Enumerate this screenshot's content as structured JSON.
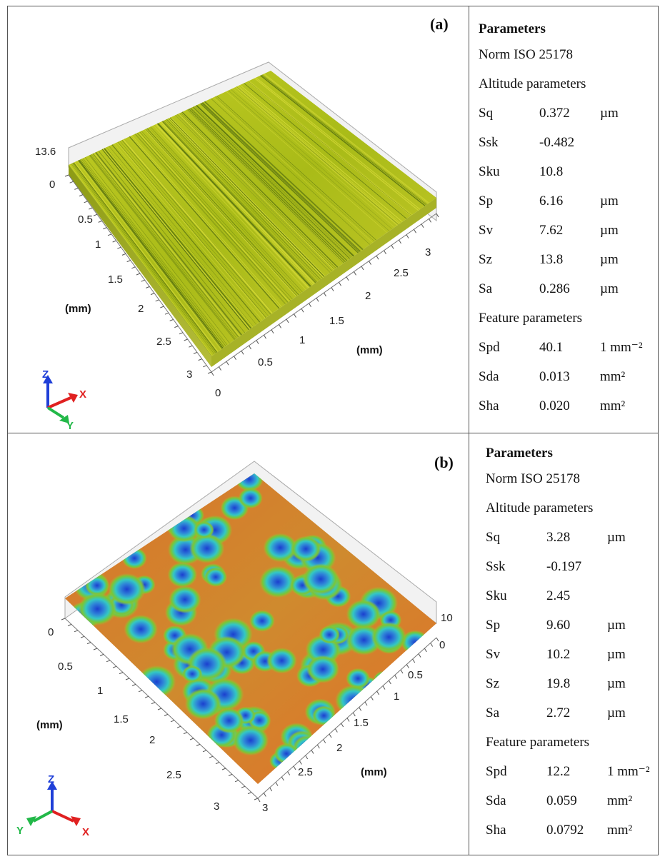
{
  "panels": {
    "a": {
      "label": "(a)",
      "plot": {
        "z_ticks": [
          "13.6",
          "0"
        ],
        "y_ticks": [
          "0.5",
          "1",
          "1.5",
          "2",
          "2.5",
          "3"
        ],
        "x_ticks": [
          "0",
          "0.5",
          "1",
          "1.5",
          "2",
          "2.5",
          "3"
        ],
        "y_unit": "(mm)",
        "x_unit": "(mm)",
        "triad": {
          "z": "Z",
          "x": "X",
          "y": "Y"
        }
      },
      "parameters": {
        "title": "Parameters",
        "norm": "Norm ISO 25178",
        "altitude_heading": "Altitude parameters",
        "altitude": [
          {
            "name": "Sq",
            "value": "0.372",
            "unit": "µm"
          },
          {
            "name": "Ssk",
            "value": "-0.482",
            "unit": ""
          },
          {
            "name": "Sku",
            "value": "10.8",
            "unit": ""
          },
          {
            "name": "Sp",
            "value": "6.16",
            "unit": "µm"
          },
          {
            "name": "Sv",
            "value": "7.62",
            "unit": "µm"
          },
          {
            "name": "Sz",
            "value": "13.8",
            "unit": "µm"
          },
          {
            "name": "Sa",
            "value": "0.286",
            "unit": "µm"
          }
        ],
        "feature_heading": "Feature parameters",
        "feature": [
          {
            "name": "Spd",
            "value": "40.1",
            "unit": "1 mm⁻²"
          },
          {
            "name": "Sda",
            "value": "0.013",
            "unit": "mm²"
          },
          {
            "name": "Sha",
            "value": "0.020",
            "unit": "mm²"
          }
        ]
      }
    },
    "b": {
      "label": "(b)",
      "plot": {
        "z_ticks": [
          "10",
          "0"
        ],
        "y_ticks": [
          "0",
          "0.5",
          "1",
          "1.5",
          "2",
          "2.5",
          "3"
        ],
        "x_ticks": [
          "0.5",
          "1",
          "1.5",
          "2",
          "2.5",
          "3"
        ],
        "y_unit": "(mm)",
        "x_unit": "(mm)",
        "triad": {
          "z": "Z",
          "x": "X",
          "y": "Y"
        }
      },
      "parameters": {
        "title": "Parameters",
        "norm": "Norm ISO 25178",
        "altitude_heading": "Altitude parameters",
        "altitude": [
          {
            "name": "Sq",
            "value": "3.28",
            "unit": "µm"
          },
          {
            "name": "Ssk",
            "value": "-0.197",
            "unit": ""
          },
          {
            "name": "Sku",
            "value": "2.45",
            "unit": ""
          },
          {
            "name": "Sp",
            "value": "9.60",
            "unit": "µm"
          },
          {
            "name": "Sv",
            "value": "10.2",
            "unit": "µm"
          },
          {
            "name": "Sz",
            "value": "19.8",
            "unit": "µm"
          },
          {
            "name": "Sa",
            "value": "2.72",
            "unit": "µm"
          }
        ],
        "feature_heading": "Feature parameters",
        "feature": [
          {
            "name": "Spd",
            "value": "12.2",
            "unit": "1 mm⁻²"
          },
          {
            "name": "Sda",
            "value": "0.059",
            "unit": "mm²"
          },
          {
            "name": "Sha",
            "value": "0.0792",
            "unit": "mm²"
          }
        ]
      }
    }
  },
  "colors": {
    "surface_a": "#b5c41c",
    "bump_blue": "#2a56d6",
    "bump_cyan": "#2fc6d2",
    "bump_green": "#6fc534",
    "valley_orange": "#e0762a",
    "triad_z": "#1f3fd8",
    "triad_x": "#e02020",
    "triad_y": "#22b848"
  }
}
